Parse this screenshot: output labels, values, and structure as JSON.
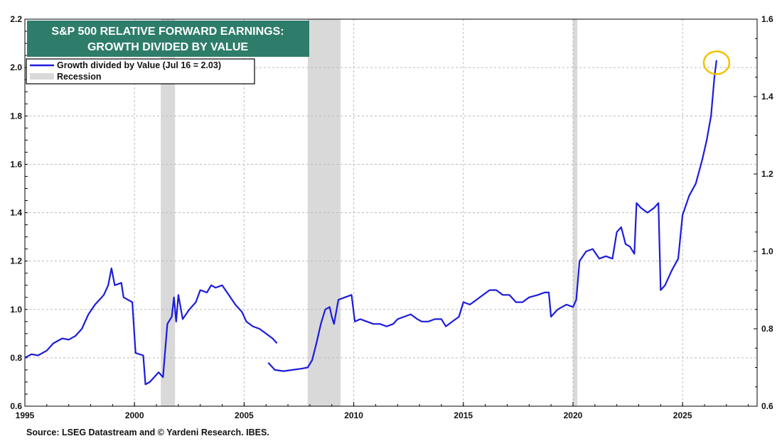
{
  "chart_data": {
    "type": "line",
    "title_lines": [
      "S&P 500 RELATIVE FORWARD EARNINGS:",
      "GROWTH DIVIDED BY VALUE"
    ],
    "legend": [
      {
        "label": "Growth divided by Value (Jul 16 = 2.03)",
        "kind": "line"
      },
      {
        "label": "Recession",
        "kind": "band"
      }
    ],
    "legend_placement": "top-left",
    "source": "Source: LSEG Datastream and © Yardeni Research. IBES.",
    "x_ticks": [
      "1995",
      "2000",
      "2005",
      "2010",
      "2015",
      "2020",
      "2025"
    ],
    "xlim": [
      1995,
      2028.4
    ],
    "y_left_ticks": [
      "0.6",
      "0.8",
      "1.0",
      "1.2",
      "1.4",
      "1.6",
      "1.8",
      "2.0",
      "2.2"
    ],
    "ylim_left": [
      0.6,
      2.2
    ],
    "y_right_ticks": [
      "0.6",
      "0.8",
      "1.0",
      "1.2",
      "1.4",
      "1.6"
    ],
    "ylim_right": [
      0.6,
      1.6
    ],
    "grid": true,
    "recessions": [
      [
        2001.2,
        2001.85
      ],
      [
        2007.9,
        2009.4
      ],
      [
        2020.0,
        2020.2
      ]
    ],
    "highlight": {
      "x": 2026.55,
      "y": 2.02
    },
    "colors": {
      "line": "#1c1cdc",
      "title_bg": "#2e7d6b",
      "recession": "#d9d9d9",
      "highlight": "#f2c200",
      "grid": "#bbbbbb"
    },
    "series": [
      {
        "segments": [
          [
            [
              1995.0,
              0.8
            ],
            [
              1995.3,
              0.815
            ],
            [
              1995.6,
              0.81
            ],
            [
              1996.0,
              0.83
            ],
            [
              1996.3,
              0.86
            ],
            [
              1996.7,
              0.88
            ],
            [
              1997.0,
              0.875
            ],
            [
              1997.3,
              0.89
            ],
            [
              1997.6,
              0.92
            ],
            [
              1997.9,
              0.98
            ],
            [
              1998.2,
              1.02
            ],
            [
              1998.4,
              1.04
            ],
            [
              1998.6,
              1.06
            ],
            [
              1998.8,
              1.1
            ],
            [
              1998.95,
              1.17
            ],
            [
              1999.1,
              1.1
            ],
            [
              1999.4,
              1.11
            ],
            [
              1999.5,
              1.05
            ],
            [
              1999.9,
              1.03
            ],
            [
              2000.05,
              0.82
            ],
            [
              2000.4,
              0.81
            ],
            [
              2000.5,
              0.69
            ],
            [
              2000.7,
              0.7
            ],
            [
              2000.9,
              0.72
            ],
            [
              2001.1,
              0.74
            ],
            [
              2001.3,
              0.72
            ],
            [
              2001.5,
              0.94
            ],
            [
              2001.7,
              0.97
            ],
            [
              2001.8,
              1.05
            ],
            [
              2001.9,
              0.95
            ],
            [
              2002.0,
              1.06
            ],
            [
              2002.2,
              0.96
            ],
            [
              2002.5,
              1.0
            ],
            [
              2002.8,
              1.03
            ],
            [
              2003.0,
              1.08
            ],
            [
              2003.3,
              1.07
            ],
            [
              2003.5,
              1.1
            ],
            [
              2003.7,
              1.09
            ],
            [
              2004.0,
              1.1
            ],
            [
              2004.3,
              1.06
            ],
            [
              2004.6,
              1.02
            ],
            [
              2004.9,
              0.99
            ],
            [
              2005.1,
              0.95
            ],
            [
              2005.4,
              0.93
            ],
            [
              2005.7,
              0.92
            ],
            [
              2006.0,
              0.9
            ],
            [
              2006.3,
              0.88
            ],
            [
              2006.5,
              0.86
            ]
          ],
          [
            [
              2006.1,
              0.78
            ],
            [
              2006.4,
              0.75
            ],
            [
              2006.8,
              0.745
            ],
            [
              2007.2,
              0.75
            ],
            [
              2007.6,
              0.755
            ],
            [
              2007.9,
              0.76
            ],
            [
              2008.1,
              0.79
            ],
            [
              2008.3,
              0.86
            ],
            [
              2008.5,
              0.94
            ],
            [
              2008.7,
              1.0
            ],
            [
              2008.9,
              1.01
            ],
            [
              2009.0,
              0.97
            ],
            [
              2009.1,
              0.94
            ],
            [
              2009.3,
              1.04
            ],
            [
              2009.6,
              1.05
            ],
            [
              2009.9,
              1.06
            ],
            [
              2010.05,
              0.95
            ],
            [
              2010.3,
              0.96
            ],
            [
              2010.6,
              0.95
            ],
            [
              2010.9,
              0.94
            ],
            [
              2011.2,
              0.94
            ],
            [
              2011.5,
              0.93
            ],
            [
              2011.8,
              0.94
            ],
            [
              2012.0,
              0.96
            ],
            [
              2012.3,
              0.97
            ],
            [
              2012.6,
              0.98
            ],
            [
              2012.9,
              0.96
            ],
            [
              2013.1,
              0.95
            ],
            [
              2013.4,
              0.95
            ],
            [
              2013.7,
              0.96
            ],
            [
              2014.0,
              0.96
            ],
            [
              2014.2,
              0.93
            ],
            [
              2014.5,
              0.95
            ],
            [
              2014.8,
              0.97
            ],
            [
              2015.0,
              1.03
            ],
            [
              2015.3,
              1.02
            ],
            [
              2015.6,
              1.04
            ],
            [
              2015.9,
              1.06
            ],
            [
              2016.2,
              1.08
            ],
            [
              2016.5,
              1.08
            ],
            [
              2016.8,
              1.06
            ],
            [
              2017.1,
              1.06
            ],
            [
              2017.4,
              1.03
            ],
            [
              2017.7,
              1.03
            ],
            [
              2018.0,
              1.05
            ],
            [
              2018.4,
              1.06
            ],
            [
              2018.7,
              1.07
            ],
            [
              2018.9,
              1.07
            ],
            [
              2019.0,
              0.97
            ],
            [
              2019.3,
              1.0
            ],
            [
              2019.7,
              1.02
            ],
            [
              2020.0,
              1.01
            ],
            [
              2020.15,
              1.04
            ],
            [
              2020.3,
              1.2
            ],
            [
              2020.6,
              1.24
            ],
            [
              2020.9,
              1.25
            ],
            [
              2021.2,
              1.21
            ],
            [
              2021.5,
              1.22
            ],
            [
              2021.8,
              1.21
            ],
            [
              2022.0,
              1.32
            ],
            [
              2022.2,
              1.34
            ],
            [
              2022.4,
              1.27
            ],
            [
              2022.6,
              1.26
            ],
            [
              2022.8,
              1.23
            ],
            [
              2022.9,
              1.44
            ],
            [
              2023.1,
              1.42
            ],
            [
              2023.4,
              1.4
            ],
            [
              2023.7,
              1.42
            ],
            [
              2023.9,
              1.44
            ],
            [
              2024.0,
              1.08
            ],
            [
              2024.2,
              1.1
            ],
            [
              2024.5,
              1.16
            ],
            [
              2024.8,
              1.21
            ],
            [
              2025.0,
              1.39
            ],
            [
              2025.3,
              1.47
            ],
            [
              2025.6,
              1.52
            ],
            [
              2025.9,
              1.62
            ],
            [
              2026.1,
              1.7
            ],
            [
              2026.3,
              1.8
            ],
            [
              2026.45,
              1.96
            ],
            [
              2026.55,
              2.03
            ]
          ]
        ]
      }
    ]
  }
}
